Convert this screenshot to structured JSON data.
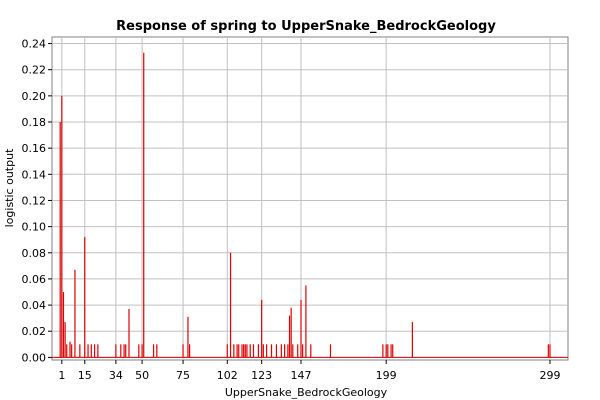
{
  "chart_data": {
    "type": "bar",
    "title": "Response of spring to UpperSnake_BedrockGeology",
    "xlabel": "UpperSnake_BedrockGeology",
    "ylabel": "logistic output",
    "xlim": [
      -5,
      310
    ],
    "ylim": [
      -0.002,
      0.245
    ],
    "x_ticks": [
      1,
      15,
      34,
      50,
      75,
      102,
      123,
      147,
      199,
      299
    ],
    "y_ticks": [
      0.0,
      0.02,
      0.04,
      0.06,
      0.08,
      0.1,
      0.12,
      0.14,
      0.16,
      0.18,
      0.2,
      0.22,
      0.24
    ],
    "grid": true,
    "bar_color": "#e00000",
    "x": [
      0,
      1,
      2,
      3,
      4,
      6,
      7,
      9,
      12,
      15,
      17,
      19,
      21,
      23,
      34,
      37,
      39,
      40,
      42,
      48,
      50,
      51,
      57,
      59,
      75,
      78,
      79,
      102,
      104,
      106,
      108,
      109,
      111,
      112,
      113,
      114,
      116,
      118,
      121,
      123,
      124,
      126,
      129,
      132,
      135,
      137,
      139,
      140,
      141,
      142,
      145,
      147,
      148,
      150,
      153,
      165,
      197,
      199,
      200,
      202,
      203,
      215,
      298,
      299
    ],
    "values": [
      0.18,
      0.2,
      0.05,
      0.027,
      0.01,
      0.012,
      0.01,
      0.067,
      0.01,
      0.092,
      0.01,
      0.01,
      0.01,
      0.01,
      0.01,
      0.01,
      0.01,
      0.01,
      0.037,
      0.01,
      0.01,
      0.233,
      0.01,
      0.01,
      0.01,
      0.031,
      0.01,
      0.01,
      0.08,
      0.01,
      0.01,
      0.01,
      0.01,
      0.01,
      0.01,
      0.01,
      0.01,
      0.01,
      0.01,
      0.044,
      0.01,
      0.01,
      0.01,
      0.01,
      0.01,
      0.01,
      0.01,
      0.032,
      0.038,
      0.01,
      0.01,
      0.044,
      0.01,
      0.055,
      0.01,
      0.01,
      0.01,
      0.01,
      0.01,
      0.01,
      0.01,
      0.027,
      0.01,
      0.01
    ]
  }
}
